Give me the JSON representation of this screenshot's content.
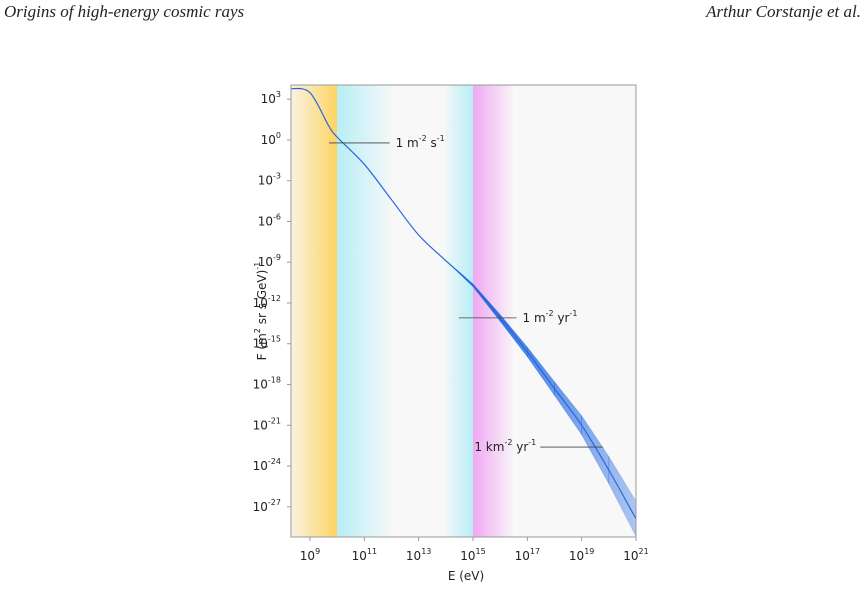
{
  "header": {
    "title": "Origins of high-energy cosmic rays",
    "author": "Arthur Corstanje et al."
  },
  "chart_data": {
    "type": "line",
    "xlabel": "E (eV)",
    "ylabel": "F (m^2 sr s GeV)^-1",
    "xscale": "log",
    "yscale": "log",
    "xlim": [
      200000000.0,
      1e+21
    ],
    "ylim": [
      6e-30,
      11000.0
    ],
    "xticks": [
      {
        "value": 1000000000.0,
        "label": "10^9"
      },
      {
        "value": 100000000000.0,
        "label": "10^11"
      },
      {
        "value": 10000000000000.0,
        "label": "10^13"
      },
      {
        "value": 1000000000000000.0,
        "label": "10^15"
      },
      {
        "value": 1e+17,
        "label": "10^17"
      },
      {
        "value": 1e+19,
        "label": "10^19"
      },
      {
        "value": 1e+21,
        "label": "10^21"
      }
    ],
    "yticks": [
      {
        "value": 1000.0,
        "label": "10^3"
      },
      {
        "value": 1,
        "label": "10^0"
      },
      {
        "value": 0.001,
        "label": "10^-3"
      },
      {
        "value": 1e-06,
        "label": "10^-6"
      },
      {
        "value": 1e-09,
        "label": "10^-9"
      },
      {
        "value": 1e-12,
        "label": "10^-12"
      },
      {
        "value": 1e-15,
        "label": "10^-15"
      },
      {
        "value": 1e-18,
        "label": "10^-18"
      },
      {
        "value": 1e-21,
        "label": "10^-21"
      },
      {
        "value": 1e-24,
        "label": "10^-24"
      },
      {
        "value": 1e-27,
        "label": "10^-27"
      }
    ],
    "x": [
      200000000.0,
      1000000000.0,
      5000000000.0,
      10000000000.0,
      100000000000.0,
      1000000000000.0,
      10000000000000.0,
      100000000000000.0,
      1000000000000000.0,
      1e+16,
      1e+17,
      1e+18,
      1e+19,
      1e+20,
      1e+21
    ],
    "color": "#2468e0",
    "values": [
      6000.0,
      3000.0,
      10,
      1.6,
      0.016,
      4e-05,
      1e-07,
      1.3e-09,
      2e-11,
      8e-14,
      2.5e-16,
      5e-19,
      1e-21,
      5e-25,
      1.3e-28
    ],
    "band_upper": [
      null,
      null,
      null,
      null,
      null,
      null,
      null,
      1.3e-09,
      2.5e-11,
      1.4e-13,
      5.6e-16,
      1.6e-18,
      5e-21,
      5e-24,
      2.6e-27
    ],
    "band_lower": [
      null,
      null,
      null,
      null,
      null,
      null,
      null,
      1.3e-09,
      1.6e-11,
      4.5e-14,
      1.1e-16,
      1.6e-19,
      2e-22,
      5e-26,
      6.5e-30
    ],
    "regions": [
      {
        "from": 200000000.0,
        "to": 10000000000.0,
        "color": "#fdd462",
        "fade": "left"
      },
      {
        "from": 10000000000.0,
        "to": 1000000000000.0,
        "color": "#b8eef6",
        "fade": "right"
      },
      {
        "from": 100000000000000.0,
        "to": 1000000000000000.0,
        "color": "#b8eef6",
        "fade": "left"
      },
      {
        "from": 1000000000000000.0,
        "to": 3e+16,
        "color": "#f0a8f2",
        "fade": "right"
      }
    ],
    "annotations": [
      {
        "text": "1 m^-2 s^-1",
        "y": 0.6,
        "x_from": 5000000000.0,
        "x_to": 850000000000.0,
        "side": "right"
      },
      {
        "text": "1 m^-2 yr^-1",
        "y": 8e-14,
        "x_from": 300000000000000.0,
        "x_to": 4e+16,
        "side": "right"
      },
      {
        "text": "1 km^-2 yr^-1",
        "y": 2.5e-23,
        "x_from": 3e+17,
        "x_to": 6e+19,
        "side": "left"
      }
    ]
  }
}
